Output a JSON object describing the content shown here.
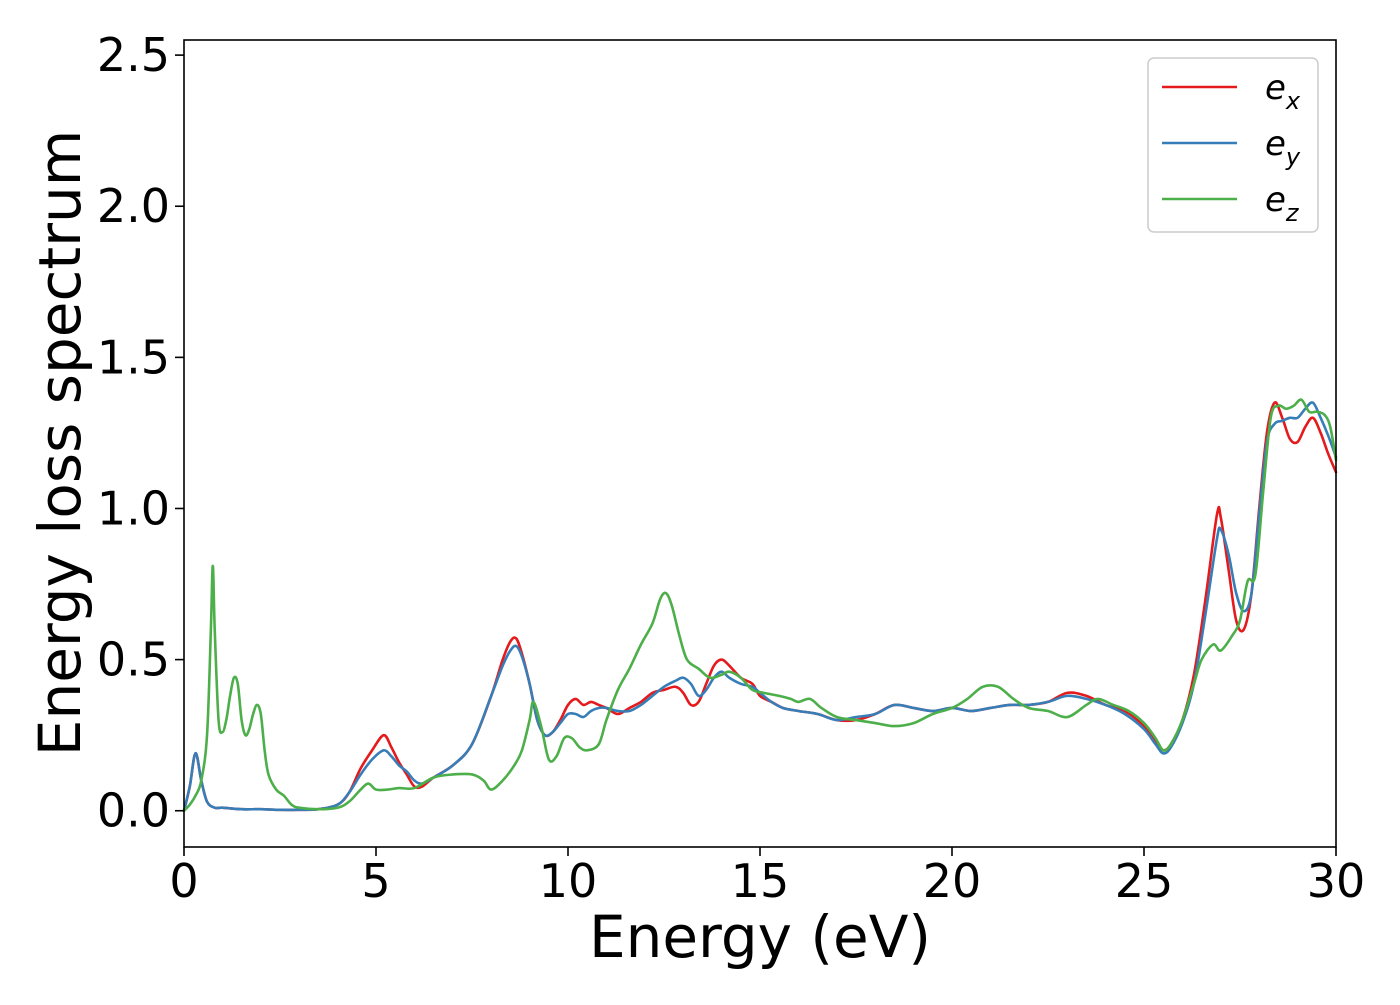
{
  "chart_data": {
    "type": "line",
    "title": "",
    "xlabel": "Energy (eV)",
    "ylabel": "Energy loss spectrum",
    "xlim": [
      0,
      30
    ],
    "ylim": [
      -0.12,
      2.55
    ],
    "xticks": [
      0,
      5,
      10,
      15,
      20,
      25,
      30
    ],
    "yticks": [
      0.0,
      0.5,
      1.0,
      1.5,
      2.0,
      2.5
    ],
    "xtick_labels": [
      "0",
      "5",
      "10",
      "15",
      "20",
      "25",
      "30"
    ],
    "ytick_labels": [
      "0.0",
      "0.5",
      "1.0",
      "1.5",
      "2.0",
      "2.5"
    ],
    "grid": false,
    "legend_position": "top-right",
    "series": [
      {
        "name": "e_x",
        "label_base": "e",
        "label_sub": "x",
        "color": "#e41a1c",
        "x": [
          0,
          0.15,
          0.3,
          0.45,
          0.6,
          0.8,
          1.0,
          1.5,
          2.0,
          2.5,
          3.0,
          3.5,
          4.0,
          4.3,
          4.6,
          4.9,
          5.2,
          5.4,
          5.6,
          5.8,
          6.0,
          6.2,
          6.5,
          7.0,
          7.5,
          8.0,
          8.3,
          8.5,
          8.65,
          8.8,
          9.0,
          9.2,
          9.4,
          9.6,
          9.8,
          10.0,
          10.2,
          10.4,
          10.6,
          10.8,
          11.0,
          11.3,
          11.6,
          11.9,
          12.2,
          12.5,
          12.8,
          13.0,
          13.2,
          13.4,
          13.6,
          13.8,
          14.0,
          14.2,
          14.5,
          14.8,
          15.0,
          15.3,
          15.6,
          16.0,
          16.5,
          17.0,
          17.5,
          18.0,
          18.5,
          19.0,
          19.5,
          20.0,
          20.5,
          21.0,
          21.5,
          22.0,
          22.5,
          23.0,
          23.5,
          24.0,
          24.5,
          25.0,
          25.3,
          25.5,
          25.7,
          26.0,
          26.3,
          26.6,
          26.9,
          27.0,
          27.2,
          27.4,
          27.6,
          27.8,
          28.0,
          28.2,
          28.4,
          28.6,
          28.8,
          29.0,
          29.2,
          29.4,
          29.6,
          29.8,
          30.0
        ],
        "y": [
          0.0,
          0.08,
          0.19,
          0.1,
          0.03,
          0.01,
          0.01,
          0.005,
          0.005,
          0.003,
          0.003,
          0.005,
          0.02,
          0.06,
          0.14,
          0.2,
          0.25,
          0.21,
          0.16,
          0.12,
          0.08,
          0.08,
          0.11,
          0.15,
          0.22,
          0.38,
          0.5,
          0.56,
          0.57,
          0.52,
          0.42,
          0.3,
          0.25,
          0.26,
          0.3,
          0.35,
          0.37,
          0.35,
          0.36,
          0.35,
          0.34,
          0.32,
          0.34,
          0.36,
          0.39,
          0.4,
          0.41,
          0.39,
          0.35,
          0.36,
          0.42,
          0.48,
          0.5,
          0.48,
          0.44,
          0.42,
          0.38,
          0.36,
          0.34,
          0.33,
          0.32,
          0.3,
          0.3,
          0.32,
          0.35,
          0.34,
          0.33,
          0.34,
          0.33,
          0.34,
          0.35,
          0.35,
          0.36,
          0.39,
          0.38,
          0.35,
          0.33,
          0.28,
          0.23,
          0.2,
          0.22,
          0.3,
          0.45,
          0.7,
          0.98,
          0.97,
          0.8,
          0.63,
          0.6,
          0.72,
          1.0,
          1.25,
          1.35,
          1.3,
          1.23,
          1.22,
          1.27,
          1.3,
          1.25,
          1.18,
          1.12
        ]
      },
      {
        "name": "e_y",
        "label_base": "e",
        "label_sub": "y",
        "color": "#377eb8",
        "x": [
          0,
          0.15,
          0.3,
          0.45,
          0.6,
          0.8,
          1.0,
          1.5,
          2.0,
          2.5,
          3.0,
          3.5,
          4.0,
          4.3,
          4.6,
          4.9,
          5.2,
          5.4,
          5.6,
          5.8,
          6.0,
          6.2,
          6.5,
          7.0,
          7.5,
          8.0,
          8.3,
          8.5,
          8.65,
          8.8,
          9.0,
          9.2,
          9.4,
          9.6,
          9.8,
          10.0,
          10.2,
          10.4,
          10.6,
          10.8,
          11.0,
          11.3,
          11.6,
          11.9,
          12.2,
          12.5,
          12.8,
          13.0,
          13.2,
          13.4,
          13.6,
          13.8,
          14.0,
          14.2,
          14.5,
          14.8,
          15.0,
          15.3,
          15.6,
          16.0,
          16.5,
          17.0,
          17.5,
          18.0,
          18.5,
          19.0,
          19.5,
          20.0,
          20.5,
          21.0,
          21.5,
          22.0,
          22.5,
          23.0,
          23.5,
          24.0,
          24.5,
          25.0,
          25.3,
          25.5,
          25.7,
          26.0,
          26.3,
          26.6,
          26.9,
          27.0,
          27.2,
          27.4,
          27.6,
          27.8,
          28.0,
          28.2,
          28.4,
          28.6,
          28.8,
          29.0,
          29.2,
          29.4,
          29.6,
          29.8,
          30.0
        ],
        "y": [
          0.0,
          0.08,
          0.19,
          0.1,
          0.03,
          0.01,
          0.01,
          0.005,
          0.005,
          0.003,
          0.003,
          0.005,
          0.02,
          0.06,
          0.12,
          0.17,
          0.2,
          0.18,
          0.15,
          0.13,
          0.1,
          0.09,
          0.11,
          0.15,
          0.22,
          0.38,
          0.48,
          0.53,
          0.545,
          0.51,
          0.42,
          0.3,
          0.25,
          0.26,
          0.29,
          0.32,
          0.32,
          0.31,
          0.33,
          0.34,
          0.34,
          0.33,
          0.33,
          0.35,
          0.38,
          0.41,
          0.43,
          0.44,
          0.42,
          0.38,
          0.4,
          0.44,
          0.46,
          0.44,
          0.42,
          0.41,
          0.39,
          0.36,
          0.34,
          0.33,
          0.32,
          0.3,
          0.31,
          0.32,
          0.35,
          0.34,
          0.33,
          0.34,
          0.33,
          0.34,
          0.35,
          0.35,
          0.36,
          0.38,
          0.37,
          0.35,
          0.32,
          0.27,
          0.22,
          0.19,
          0.21,
          0.29,
          0.42,
          0.65,
          0.9,
          0.93,
          0.85,
          0.72,
          0.66,
          0.72,
          0.98,
          1.22,
          1.28,
          1.29,
          1.3,
          1.3,
          1.33,
          1.35,
          1.3,
          1.24,
          1.17
        ]
      },
      {
        "name": "e_z",
        "label_base": "e",
        "label_sub": "z",
        "color": "#4daf4a",
        "x": [
          0,
          0.15,
          0.3,
          0.45,
          0.6,
          0.7,
          0.75,
          0.8,
          0.9,
          1.0,
          1.1,
          1.2,
          1.3,
          1.4,
          1.5,
          1.6,
          1.7,
          1.8,
          1.9,
          2.0,
          2.1,
          2.2,
          2.4,
          2.6,
          2.8,
          3.0,
          3.5,
          4.0,
          4.3,
          4.6,
          4.8,
          5.0,
          5.3,
          5.6,
          6.0,
          6.5,
          7.0,
          7.5,
          7.8,
          8.0,
          8.3,
          8.6,
          8.8,
          9.0,
          9.1,
          9.3,
          9.5,
          9.7,
          9.9,
          10.1,
          10.3,
          10.5,
          10.8,
          11.0,
          11.3,
          11.6,
          11.9,
          12.2,
          12.4,
          12.55,
          12.7,
          12.9,
          13.1,
          13.4,
          13.7,
          14.0,
          14.2,
          14.5,
          14.8,
          15.1,
          15.5,
          15.8,
          16.0,
          16.3,
          16.6,
          17.0,
          17.5,
          18.0,
          18.5,
          19.0,
          19.5,
          20.0,
          20.4,
          20.8,
          21.2,
          21.6,
          22.0,
          22.5,
          23.0,
          23.5,
          23.8,
          24.2,
          24.6,
          25.0,
          25.3,
          25.5,
          25.7,
          26.0,
          26.3,
          26.5,
          26.8,
          27.0,
          27.3,
          27.5,
          27.7,
          27.9,
          28.1,
          28.3,
          28.5,
          28.7,
          28.9,
          29.1,
          29.3,
          29.5,
          29.7,
          29.85,
          30.0
        ],
        "y": [
          0.0,
          0.02,
          0.05,
          0.1,
          0.25,
          0.6,
          0.81,
          0.6,
          0.3,
          0.26,
          0.3,
          0.38,
          0.44,
          0.42,
          0.3,
          0.25,
          0.27,
          0.32,
          0.35,
          0.32,
          0.2,
          0.12,
          0.07,
          0.05,
          0.02,
          0.01,
          0.005,
          0.01,
          0.03,
          0.07,
          0.09,
          0.07,
          0.07,
          0.075,
          0.075,
          0.11,
          0.12,
          0.12,
          0.1,
          0.07,
          0.1,
          0.15,
          0.2,
          0.3,
          0.36,
          0.28,
          0.17,
          0.18,
          0.24,
          0.24,
          0.21,
          0.2,
          0.22,
          0.3,
          0.4,
          0.47,
          0.55,
          0.62,
          0.7,
          0.72,
          0.68,
          0.58,
          0.5,
          0.47,
          0.44,
          0.45,
          0.46,
          0.44,
          0.4,
          0.39,
          0.38,
          0.37,
          0.36,
          0.37,
          0.34,
          0.31,
          0.3,
          0.29,
          0.28,
          0.29,
          0.32,
          0.34,
          0.37,
          0.41,
          0.41,
          0.37,
          0.34,
          0.33,
          0.31,
          0.35,
          0.37,
          0.35,
          0.33,
          0.29,
          0.24,
          0.2,
          0.22,
          0.3,
          0.42,
          0.5,
          0.55,
          0.53,
          0.58,
          0.63,
          0.76,
          0.78,
          1.05,
          1.3,
          1.34,
          1.33,
          1.34,
          1.36,
          1.32,
          1.32,
          1.31,
          1.27,
          1.16
        ]
      }
    ]
  }
}
